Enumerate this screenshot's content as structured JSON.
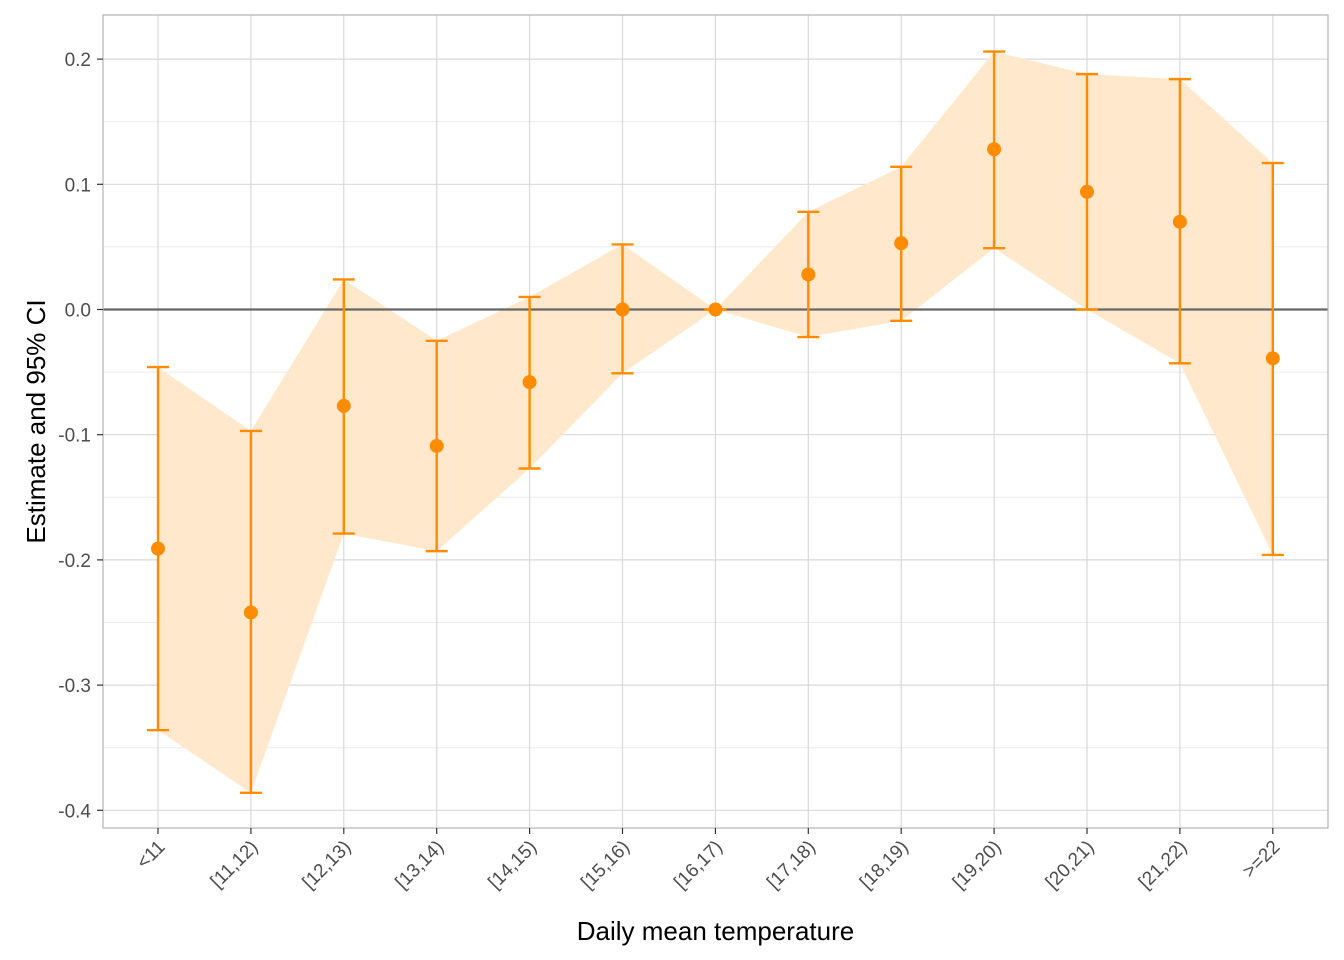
{
  "colors": {
    "accent": "#FF8C00",
    "ribbon": "#FFE8CC",
    "grid_major": "#d9d9d9",
    "grid_minor": "#ebebeb",
    "panel_border": "#b3b3b3",
    "zero_line": "#666666"
  },
  "chart_data": {
    "type": "scatter",
    "title": "",
    "xlabel": "Daily mean temperature",
    "ylabel": "Estimate and 95% CI",
    "categories": [
      "<11",
      "[11,12)",
      "[12,13)",
      "[13,14)",
      "[14,15)",
      "[15,16)",
      "[16,17)",
      "[17,18)",
      "[18,19)",
      "[19,20)",
      "[20,21)",
      "[21,22)",
      ">=22"
    ],
    "series": [
      {
        "estimate": [
          -0.191,
          -0.242,
          -0.077,
          -0.109,
          -0.058,
          0.0,
          0.0,
          0.028,
          0.053,
          0.128,
          0.094,
          0.07,
          -0.039
        ],
        "ci_lower": [
          -0.336,
          -0.386,
          -0.179,
          -0.193,
          -0.127,
          -0.051,
          0.0,
          -0.022,
          -0.009,
          0.049,
          0.0,
          -0.043,
          -0.196
        ],
        "ci_upper": [
          -0.046,
          -0.097,
          0.024,
          -0.025,
          0.01,
          0.052,
          0.0,
          0.078,
          0.114,
          0.206,
          0.188,
          0.184,
          0.117
        ]
      }
    ],
    "yticks": [
      0.2,
      0.1,
      0.0,
      -0.1,
      -0.2,
      -0.3,
      -0.4
    ],
    "ytick_labels": [
      "0.2",
      "0.1",
      "0.0",
      "-0.1",
      "-0.2",
      "-0.3",
      "-0.4"
    ],
    "ylim": [
      -0.415,
      0.235
    ],
    "reference_line": 0.0,
    "grid": true,
    "legend": "none"
  }
}
